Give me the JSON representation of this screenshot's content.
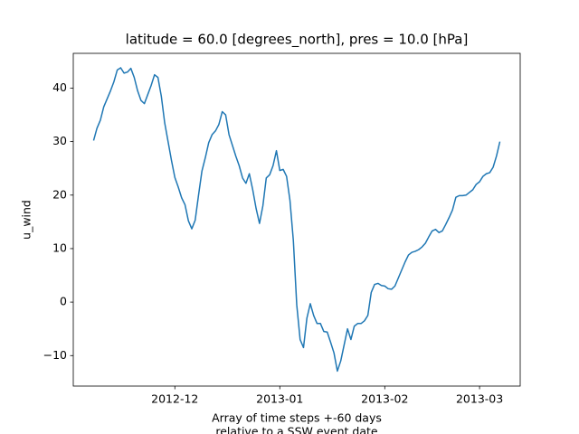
{
  "chart_data": {
    "type": "line",
    "title": "latitude = 60.0 [degrees_north], pres = 10.0 [hPa]",
    "ylabel": "u_wind",
    "xlabel": [
      "Array of time steps +-60 days",
      "relative to a SSW event date"
    ],
    "x": [
      -60,
      -59,
      -58,
      -57,
      -56,
      -55,
      -54,
      -53,
      -52,
      -51,
      -50,
      -49,
      -48,
      -47,
      -46,
      -45,
      -44,
      -43,
      -42,
      -41,
      -40,
      -39,
      -38,
      -37,
      -36,
      -35,
      -34,
      -33,
      -32,
      -31,
      -30,
      -29,
      -28,
      -27,
      -26,
      -25,
      -24,
      -23,
      -22,
      -21,
      -20,
      -19,
      -18,
      -17,
      -16,
      -15,
      -14,
      -13,
      -12,
      -11,
      -10,
      -9,
      -8,
      -7,
      -6,
      -5,
      -4,
      -3,
      -2,
      -1,
      0,
      1,
      2,
      3,
      4,
      5,
      6,
      7,
      8,
      9,
      10,
      11,
      12,
      13,
      14,
      15,
      16,
      17,
      18,
      19,
      20,
      21,
      22,
      23,
      24,
      25,
      26,
      27,
      28,
      29,
      30,
      31,
      32,
      33,
      34,
      35,
      36,
      37,
      38,
      39,
      40,
      41,
      42,
      43,
      44,
      45,
      46,
      47,
      48,
      49,
      50,
      51,
      52,
      53,
      54,
      55,
      56,
      57,
      58,
      59,
      60
    ],
    "series": [
      {
        "color": "#1f77b4",
        "values": [
          30.2,
          32.5,
          34,
          36.5,
          38,
          39.5,
          41.2,
          43.4,
          43.8,
          42.8,
          43,
          43.7,
          42,
          39.5,
          37.7,
          37.1,
          38.8,
          40.5,
          42.5,
          42,
          38.5,
          33.5,
          30,
          26.5,
          23.3,
          21.5,
          19.5,
          18.2,
          15.2,
          13.7,
          15.3,
          20,
          24.5,
          27,
          29.8,
          31.3,
          32,
          33.2,
          35.6,
          35,
          31.3,
          29.3,
          27.3,
          25.5,
          23.2,
          22.2,
          24,
          21,
          17.5,
          14.7,
          18,
          23.2,
          23.8,
          25.5,
          28.3,
          24.6,
          24.8,
          23.5,
          19,
          11.5,
          -0.5,
          -7,
          -8.5,
          -3,
          -0.3,
          -2.5,
          -4,
          -4,
          -5.5,
          -5.6,
          -7.5,
          -9.5,
          -12.9,
          -11,
          -8,
          -5,
          -7,
          -4.5,
          -4,
          -4,
          -3.5,
          -2.5,
          1.8,
          3.3,
          3.5,
          3.1,
          3,
          2.5,
          2.4,
          3,
          4.5,
          6,
          7.5,
          8.8,
          9.3,
          9.5,
          9.8,
          10.3,
          11,
          12.2,
          13.3,
          13.6,
          13,
          13.3,
          14.5,
          15.8,
          17.2,
          19.6,
          19.9,
          19.9,
          20,
          20.5,
          21,
          22,
          22.5,
          23.5,
          24,
          24.2,
          25.2,
          27.3,
          30
        ]
      }
    ],
    "xlim": [
      -66,
      66
    ],
    "xticks": [
      {
        "value": -36,
        "label": "2012-12"
      },
      {
        "value": -5,
        "label": "2013-01"
      },
      {
        "value": 26,
        "label": "2013-02"
      },
      {
        "value": 54,
        "label": "2013-03"
      }
    ],
    "ylim": [
      -15.7,
      46.5
    ],
    "yticks": [
      {
        "value": -10,
        "label": "−10"
      },
      0,
      10,
      20,
      30,
      40
    ]
  }
}
